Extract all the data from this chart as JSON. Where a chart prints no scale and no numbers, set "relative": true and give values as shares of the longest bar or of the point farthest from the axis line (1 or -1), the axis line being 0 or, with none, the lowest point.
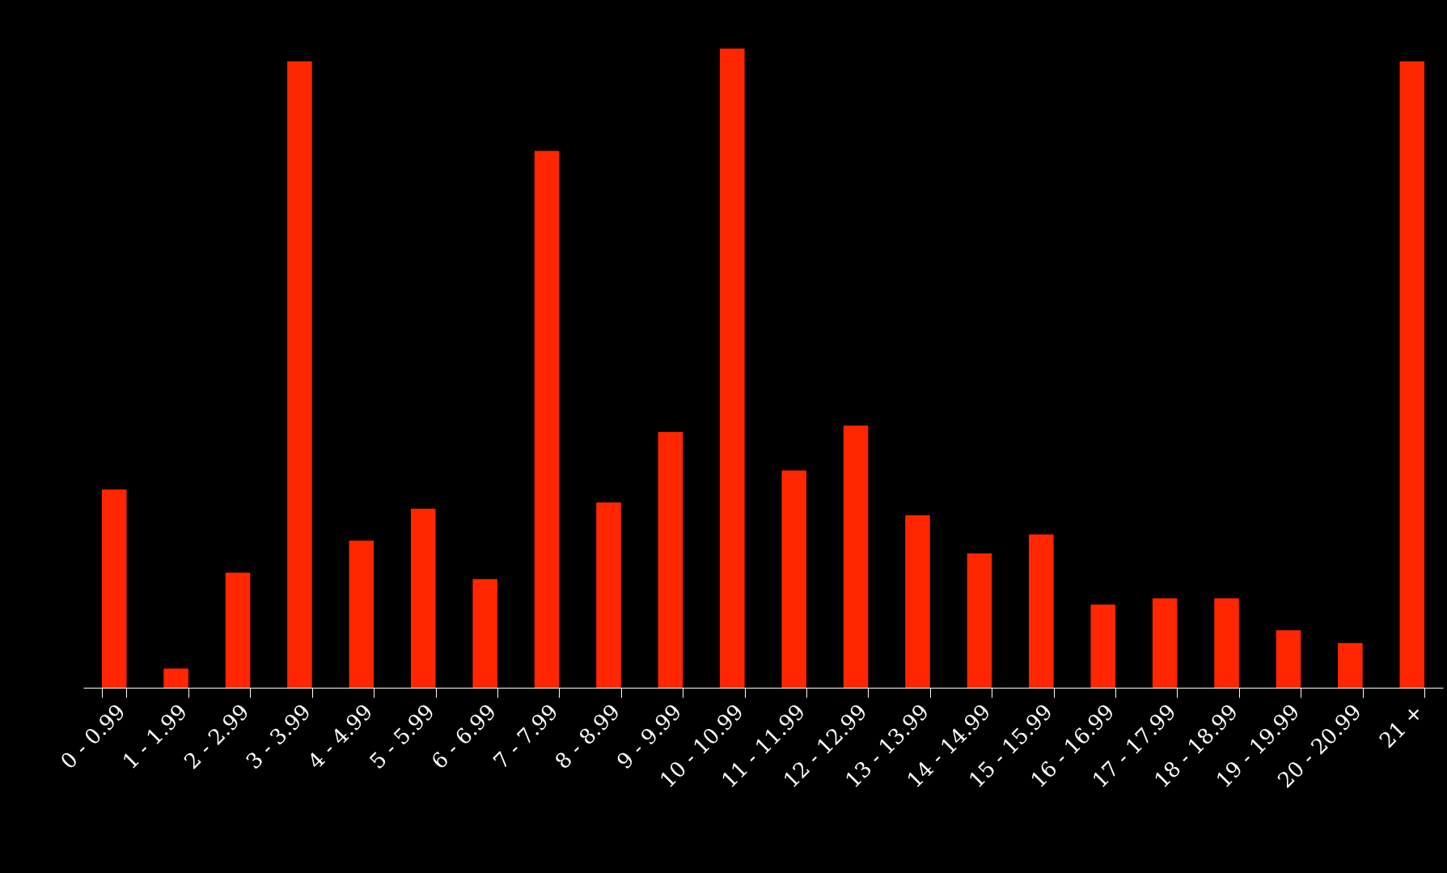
{
  "chart_data": {
    "type": "bar",
    "relative": true,
    "color": "#ff2600",
    "categories": [
      "0 - 0.99",
      "1 - 1.99",
      "2 - 2.99",
      "3 - 3.99",
      "4 - 4.99",
      "5 - 5.99",
      "6 - 6.99",
      "7 - 7.99",
      "8 - 8.99",
      "9 - 9.99",
      "10 - 10.99",
      "11 - 11.99",
      "12 - 12.99",
      "13 - 13.99",
      "14 - 14.99",
      "15 - 15.99",
      "16 - 16.99",
      "17 - 17.99",
      "18 - 18.99",
      "19 - 19.99",
      "20 - 20.99",
      "21 +"
    ],
    "values": [
      0.31,
      0.03,
      0.18,
      0.98,
      0.23,
      0.28,
      0.17,
      0.84,
      0.29,
      0.4,
      1,
      0.34,
      0.41,
      0.27,
      0.21,
      0.24,
      0.13,
      0.14,
      0.14,
      0.09,
      0.07,
      0.98
    ],
    "grid": false
  }
}
